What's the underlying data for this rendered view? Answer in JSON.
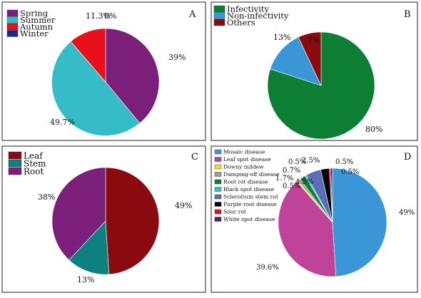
{
  "chart_data": [
    {
      "type": "pie",
      "panel_label": "A",
      "legend_position": "top-left",
      "start": "top",
      "direction": "clockwise",
      "slices": [
        {
          "name": "Spring",
          "value": 39,
          "label": "39%",
          "color": "#7b1f7a"
        },
        {
          "name": "Summer",
          "value": 49.7,
          "label": "49.7%",
          "color": "#35bcc6"
        },
        {
          "name": "Autumn",
          "value": 11.3,
          "label": "11.3%",
          "color": "#e8101c"
        },
        {
          "name": "Winter",
          "value": 0,
          "label": "0%",
          "color": "#1a2a8c"
        }
      ]
    },
    {
      "type": "pie",
      "panel_label": "B",
      "legend_position": "top-left",
      "start": "top",
      "direction": "clockwise",
      "slices": [
        {
          "name": "Infectivity",
          "value": 80,
          "label": "80%",
          "color": "#0c7f35"
        },
        {
          "name": "Non-infectivity",
          "value": 13,
          "label": "13%",
          "color": "#3a96d6"
        },
        {
          "name": "Others",
          "value": 7,
          "label": "7%",
          "color": "#8b0a10"
        }
      ]
    },
    {
      "type": "pie",
      "panel_label": "C",
      "legend_position": "top-left",
      "start": "top",
      "direction": "clockwise",
      "slices": [
        {
          "name": "Leaf",
          "value": 49,
          "label": "49%",
          "color": "#8b0a10"
        },
        {
          "name": "Stem",
          "value": 13,
          "label": "13%",
          "color": "#0f8080"
        },
        {
          "name": "Root",
          "value": 38,
          "label": "38%",
          "color": "#7b1f7a"
        }
      ]
    },
    {
      "type": "pie",
      "panel_label": "D",
      "legend_position": "top-left",
      "start": "top",
      "direction": "clockwise",
      "slices": [
        {
          "name": "Mosaic disease",
          "value": 49,
          "label": "49%",
          "color": "#3a96d6"
        },
        {
          "name": "Leaf spot disease",
          "value": 39.6,
          "label": "39.6%",
          "color": "#c0439a"
        },
        {
          "name": "Downy mildew",
          "value": 0.5,
          "label": "0.5%",
          "color": "#e8e020"
        },
        {
          "name": "Damping-off disease",
          "value": 0.7,
          "label": "0.7%",
          "color": "#9a9a9a"
        },
        {
          "name": "Root rot disease",
          "value": 1.7,
          "label": "1.7%",
          "color": "#0c7f35"
        },
        {
          "name": "Black spot disease",
          "value": 0.5,
          "label": "0.5%",
          "color": "#35bcc6"
        },
        {
          "name": "Sclerotium stem rot",
          "value": 4.5,
          "label": "4.5%",
          "color": "#5a6fb8"
        },
        {
          "name": "Purple root disease",
          "value": 2.5,
          "label": "2.5%",
          "color": "#000000"
        },
        {
          "name": "Sour rot",
          "value": 0.5,
          "label": "0.5%",
          "color": "#e8101c"
        },
        {
          "name": "White spot disease",
          "value": 0.5,
          "label": "0.5%",
          "color": "#4a1f7a"
        }
      ]
    }
  ]
}
